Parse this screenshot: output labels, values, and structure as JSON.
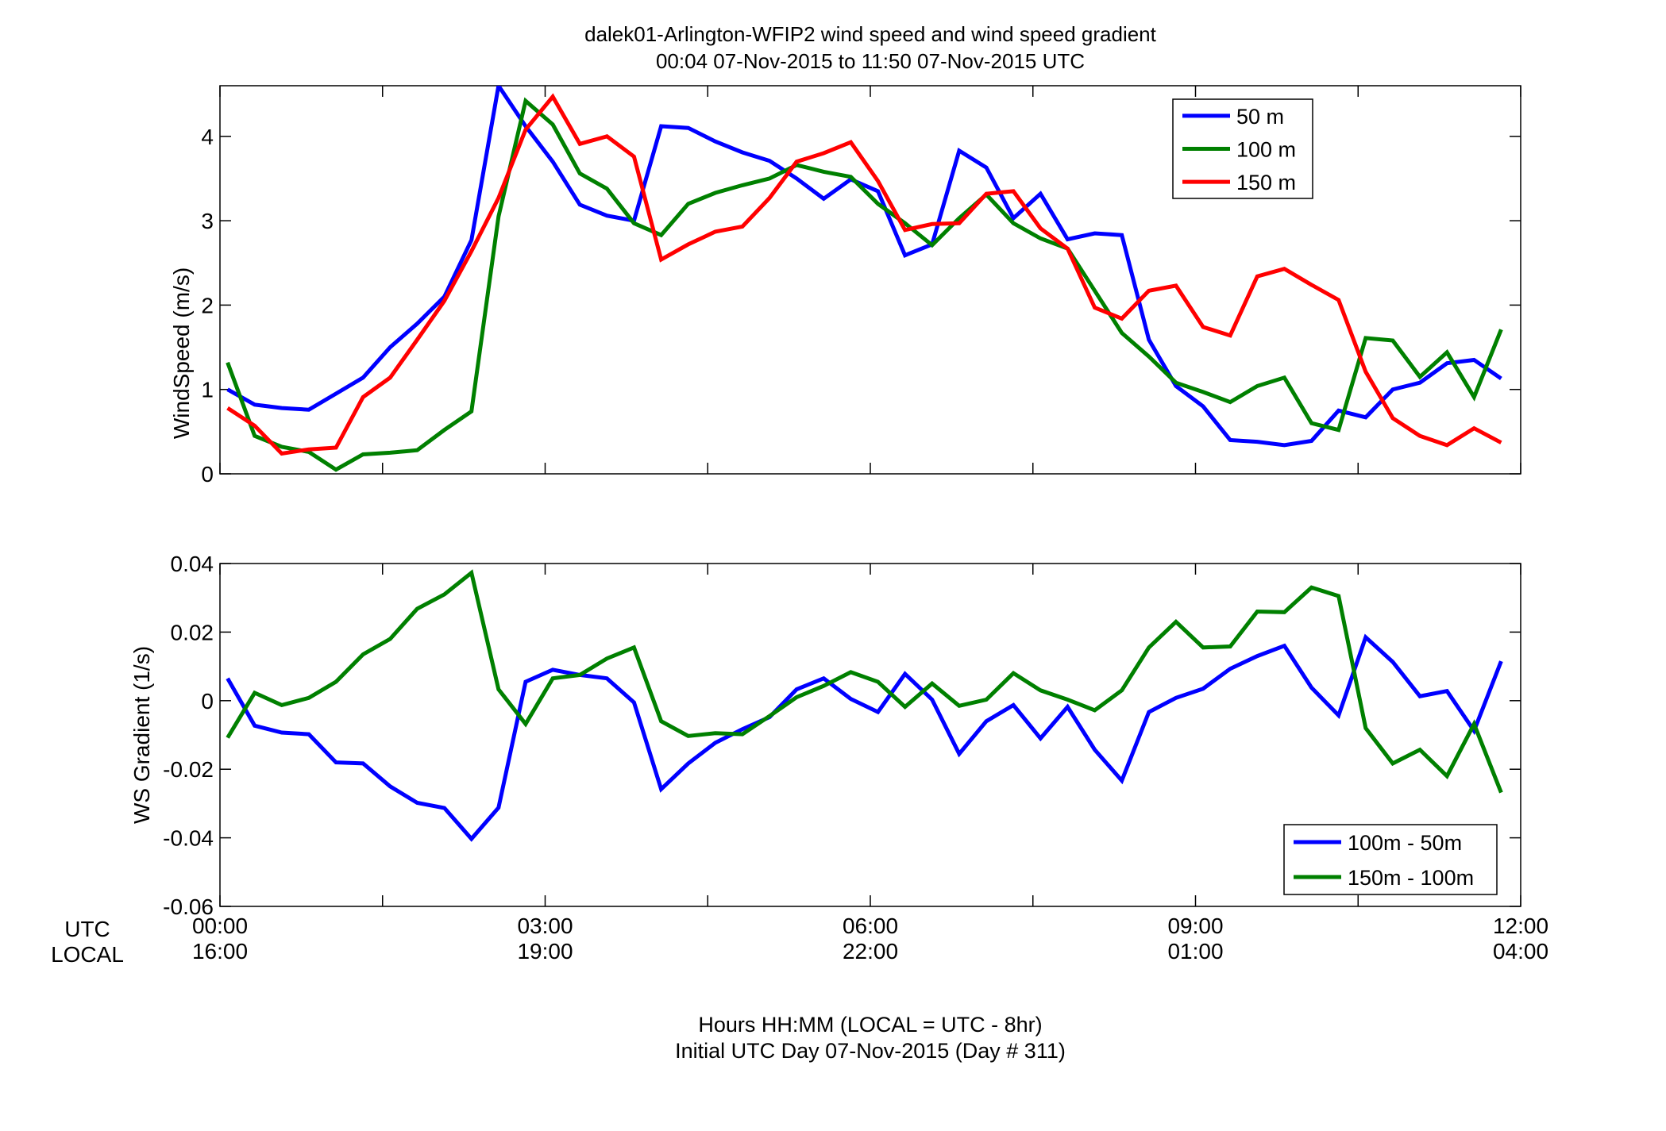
{
  "figure": {
    "title_line1": "dalek01-Arlington-WFIP2  wind speed and wind speed gradient",
    "title_line2": "00:04 07-Nov-2015 to 11:50 07-Nov-2015  UTC",
    "xlabel_line1": "Hours HH:MM  (LOCAL = UTC - 8hr)",
    "xlabel_line2": "Initial UTC Day 07-Nov-2015 (Day # 311)",
    "row_label_utc": "UTC",
    "row_label_local": "LOCAL",
    "x_ticks_utc": [
      "00:00",
      "03:00",
      "06:00",
      "09:00",
      "12:00"
    ],
    "x_ticks_local": [
      "16:00",
      "19:00",
      "22:00",
      "01:00",
      "04:00"
    ]
  },
  "chart_data": [
    {
      "type": "line",
      "ylabel": "WindSpeed (m/s)",
      "xlim": [
        0,
        12
      ],
      "ylim": [
        0,
        4.6
      ],
      "yticks": [
        0,
        1,
        2,
        3,
        4
      ],
      "grid": false,
      "legend_position": "top-right",
      "x": [
        0.07,
        0.32,
        0.57,
        0.82,
        1.07,
        1.32,
        1.57,
        1.82,
        2.07,
        2.32,
        2.57,
        2.82,
        3.07,
        3.32,
        3.57,
        3.82,
        4.07,
        4.32,
        4.57,
        4.82,
        5.07,
        5.32,
        5.57,
        5.82,
        6.07,
        6.32,
        6.57,
        6.82,
        7.07,
        7.32,
        7.57,
        7.82,
        8.07,
        8.32,
        8.57,
        8.82,
        9.07,
        9.32,
        9.57,
        9.82,
        10.07,
        10.32,
        10.57,
        10.82,
        11.07,
        11.32,
        11.57,
        11.82
      ],
      "series": [
        {
          "name": "50 m",
          "color": "#0000ff",
          "values": [
            1.0,
            0.82,
            0.78,
            0.76,
            0.95,
            1.14,
            1.5,
            1.78,
            2.1,
            2.77,
            4.6,
            4.12,
            3.7,
            3.19,
            3.06,
            3.0,
            4.12,
            4.1,
            3.94,
            3.81,
            3.71,
            3.5,
            3.26,
            3.49,
            3.35,
            2.59,
            2.72,
            3.83,
            3.63,
            3.03,
            3.32,
            2.78,
            2.85,
            2.83,
            1.59,
            1.04,
            0.8,
            0.4,
            0.38,
            0.34,
            0.39,
            0.75,
            0.67,
            1.0,
            1.08,
            1.31,
            1.35,
            1.13
          ]
        },
        {
          "name": "100 m",
          "color": "#008000",
          "values": [
            1.32,
            0.45,
            0.32,
            0.26,
            0.05,
            0.23,
            0.25,
            0.28,
            0.52,
            0.74,
            3.05,
            4.42,
            4.14,
            3.56,
            3.38,
            2.97,
            2.83,
            3.2,
            3.33,
            3.42,
            3.5,
            3.66,
            3.58,
            3.52,
            3.2,
            2.97,
            2.71,
            3.03,
            3.31,
            2.97,
            2.79,
            2.67,
            2.17,
            1.67,
            1.39,
            1.08,
            0.97,
            0.85,
            1.04,
            1.14,
            0.6,
            0.52,
            1.61,
            1.58,
            1.15,
            1.44,
            0.91,
            1.71
          ]
        },
        {
          "name": "150 m",
          "color": "#ff0000",
          "values": [
            0.78,
            0.57,
            0.24,
            0.29,
            0.31,
            0.91,
            1.14,
            1.59,
            2.05,
            2.64,
            3.27,
            4.08,
            4.47,
            3.91,
            4.0,
            3.76,
            2.54,
            2.72,
            2.87,
            2.93,
            3.27,
            3.7,
            3.8,
            3.93,
            3.47,
            2.89,
            2.96,
            2.97,
            3.32,
            3.35,
            2.91,
            2.67,
            1.97,
            1.84,
            2.17,
            2.23,
            1.74,
            1.64,
            2.34,
            2.43,
            2.24,
            2.06,
            1.21,
            0.66,
            0.45,
            0.34,
            0.54,
            0.37
          ]
        }
      ]
    },
    {
      "type": "line",
      "ylabel": "WS Gradient (1/s)",
      "xlim": [
        0,
        12
      ],
      "ylim": [
        -0.06,
        0.04
      ],
      "yticks": [
        -0.06,
        -0.04,
        -0.02,
        0,
        0.02,
        0.04
      ],
      "ytick_labels": [
        "-0.06",
        "-0.04",
        "-0.02",
        "0",
        "0.02",
        "0.04"
      ],
      "grid": false,
      "legend_position": "bottom-right",
      "x": [
        0.07,
        0.32,
        0.57,
        0.82,
        1.07,
        1.32,
        1.57,
        1.82,
        2.07,
        2.32,
        2.57,
        2.82,
        3.07,
        3.32,
        3.57,
        3.82,
        4.07,
        4.32,
        4.57,
        4.82,
        5.07,
        5.32,
        5.57,
        5.82,
        6.07,
        6.32,
        6.57,
        6.82,
        7.07,
        7.32,
        7.57,
        7.82,
        8.07,
        8.32,
        8.57,
        8.82,
        9.07,
        9.32,
        9.57,
        9.82,
        10.07,
        10.32,
        10.57,
        10.82,
        11.07,
        11.32,
        11.57,
        11.82
      ],
      "series": [
        {
          "name": "100m - 50m",
          "color": "#0000ff",
          "values": [
            0.0065,
            -0.0073,
            -0.0093,
            -0.0098,
            -0.018,
            -0.0183,
            -0.025,
            -0.0298,
            -0.0313,
            -0.0403,
            -0.0312,
            0.0055,
            0.009,
            0.0075,
            0.0065,
            -0.0005,
            -0.0258,
            -0.0183,
            -0.0123,
            -0.0083,
            -0.0048,
            0.0033,
            0.0065,
            0.0005,
            -0.0033,
            0.0078,
            0.0003,
            -0.0155,
            -0.006,
            -0.0013,
            -0.011,
            -0.0018,
            -0.0143,
            -0.0233,
            -0.0033,
            0.0008,
            0.0035,
            0.0093,
            0.013,
            0.016,
            0.0038,
            -0.0043,
            0.0185,
            0.0113,
            0.0013,
            0.0028,
            -0.0088,
            0.0115
          ]
        },
        {
          "name": "150m - 100m",
          "color": "#008000",
          "values": [
            -0.0108,
            0.0023,
            -0.0013,
            0.0008,
            0.0055,
            0.0135,
            0.018,
            0.0268,
            0.031,
            0.0373,
            0.0033,
            -0.0068,
            0.0065,
            0.0075,
            0.0123,
            0.0155,
            -0.006,
            -0.0103,
            -0.0095,
            -0.0098,
            -0.0045,
            0.001,
            0.0043,
            0.0083,
            0.0055,
            -0.0018,
            0.005,
            -0.0015,
            0.0003,
            0.008,
            0.003,
            0.0003,
            -0.0028,
            0.003,
            0.0155,
            0.023,
            0.0155,
            0.0158,
            0.026,
            0.0258,
            0.033,
            0.0305,
            -0.008,
            -0.0183,
            -0.0143,
            -0.022,
            -0.0068,
            -0.0268
          ]
        }
      ]
    }
  ]
}
